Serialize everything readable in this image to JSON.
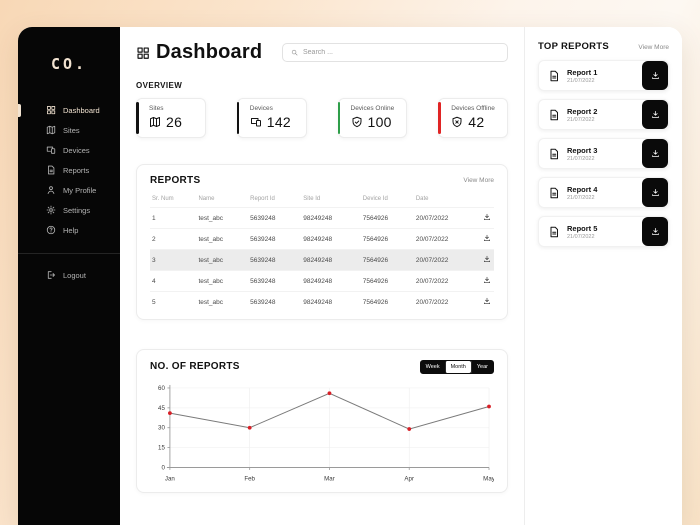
{
  "sidebar": {
    "logo": "CO.",
    "items": [
      {
        "label": "Dashboard",
        "icon": "dashboard-icon",
        "active": true
      },
      {
        "label": "Sites",
        "icon": "map-icon",
        "active": false
      },
      {
        "label": "Devices",
        "icon": "devices-icon",
        "active": false
      },
      {
        "label": "Reports",
        "icon": "report-icon",
        "active": false
      },
      {
        "label": "My Profile",
        "icon": "profile-icon",
        "active": false
      },
      {
        "label": "Settings",
        "icon": "gear-icon",
        "active": false
      },
      {
        "label": "Help",
        "icon": "help-icon",
        "active": false
      }
    ],
    "logout": {
      "label": "Logout",
      "icon": "logout-icon"
    }
  },
  "header": {
    "title": "Dashboard",
    "search_placeholder": "Search ..."
  },
  "overview": {
    "label": "OVERVIEW",
    "cards": [
      {
        "label": "Sites",
        "value": "26",
        "icon": "map-icon",
        "accent": "#111111"
      },
      {
        "label": "Devices",
        "value": "142",
        "icon": "devices-icon",
        "accent": "#111111"
      },
      {
        "label": "Devices Online",
        "value": "100",
        "icon": "shield-check-icon",
        "accent": "#2e9e49"
      },
      {
        "label": "Devices Offline",
        "value": "42",
        "icon": "shield-x-icon",
        "accent": "#e02424"
      }
    ]
  },
  "reports": {
    "title": "REPORTS",
    "view_more": "View More",
    "columns": [
      "Sr. Num",
      "Name",
      "Report Id",
      "Site Id",
      "Device Id",
      "Date",
      ""
    ],
    "rows": [
      [
        "1",
        "test_abc",
        "5639248",
        "98249248",
        "7564926",
        "20/07/2022"
      ],
      [
        "2",
        "test_abc",
        "5639248",
        "98249248",
        "7564926",
        "20/07/2022"
      ],
      [
        "3",
        "test_abc",
        "5639248",
        "98249248",
        "7564926",
        "20/07/2022"
      ],
      [
        "4",
        "test_abc",
        "5639248",
        "98249248",
        "7564926",
        "20/07/2022"
      ],
      [
        "5",
        "test_abc",
        "5639248",
        "98249248",
        "7564926",
        "20/07/2022"
      ]
    ],
    "highlighted_row_index": 2
  },
  "chart_panel": {
    "title": "NO. OF REPORTS",
    "toggles": [
      {
        "label": "Week",
        "active": false
      },
      {
        "label": "Month",
        "active": true
      },
      {
        "label": "Year",
        "active": false
      }
    ]
  },
  "chart_data": {
    "type": "line",
    "x": [
      "Jan",
      "Feb",
      "Mar",
      "Apr",
      "May"
    ],
    "values": [
      41,
      30,
      56,
      29,
      46
    ],
    "title": "NO. OF REPORTS",
    "xlabel": "",
    "ylabel": "",
    "ylim": [
      0,
      60
    ],
    "yticks": [
      0,
      15,
      30,
      45,
      60
    ],
    "grid": true,
    "legend": false,
    "line_color": "#7a7a7a",
    "point_color": "#d81f26"
  },
  "top_reports": {
    "title": "TOP REPORTS",
    "view_more": "View More",
    "items": [
      {
        "name": "Report 1",
        "date": "21/07/2022"
      },
      {
        "name": "Report 2",
        "date": "21/07/2022"
      },
      {
        "name": "Report 3",
        "date": "21/07/2022"
      },
      {
        "name": "Report 4",
        "date": "21/07/2022"
      },
      {
        "name": "Report 5",
        "date": "21/07/2022"
      }
    ]
  }
}
